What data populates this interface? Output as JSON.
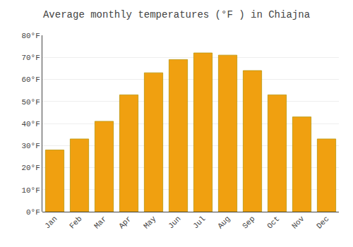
{
  "chart_data": {
    "type": "bar",
    "title": "Average monthly temperatures (°F ) in Chiajna",
    "categories": [
      "Jan",
      "Feb",
      "Mar",
      "Apr",
      "May",
      "Jun",
      "Jul",
      "Aug",
      "Sep",
      "Oct",
      "Nov",
      "Dec"
    ],
    "values": [
      28,
      33,
      41,
      53,
      63,
      69,
      72,
      71,
      64,
      53,
      43,
      33
    ],
    "color": "#F0A010",
    "ylim": [
      0,
      80
    ],
    "yticks": [
      {
        "value": 0,
        "label": "0°F"
      },
      {
        "value": 10,
        "label": "10°F"
      },
      {
        "value": 20,
        "label": "20°F"
      },
      {
        "value": 30,
        "label": "30°F"
      },
      {
        "value": 40,
        "label": "40°F"
      },
      {
        "value": 50,
        "label": "50°F"
      },
      {
        "value": 60,
        "label": "60°F"
      },
      {
        "value": 70,
        "label": "70°F"
      },
      {
        "value": 80,
        "label": "80°F"
      }
    ],
    "grid": true
  }
}
